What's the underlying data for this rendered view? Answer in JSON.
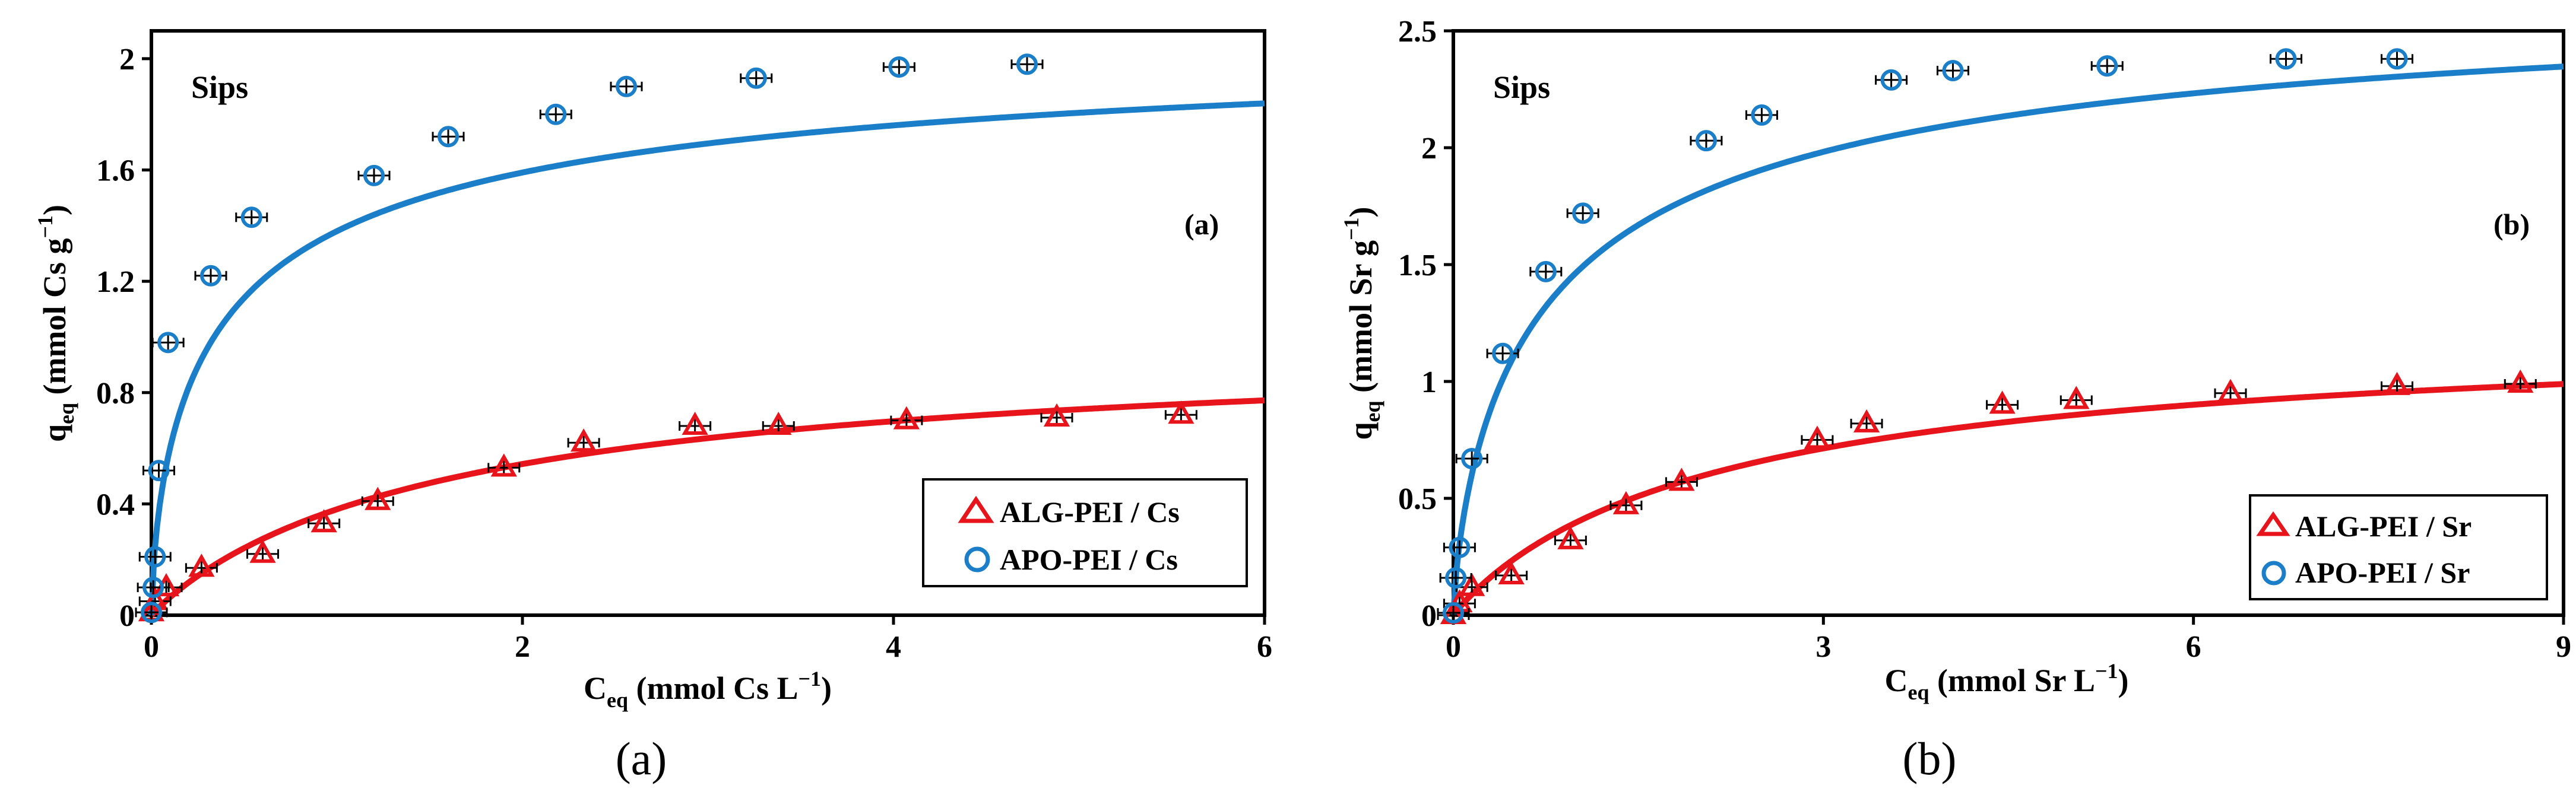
{
  "chart_data": [
    {
      "type": "scatter",
      "panel_tag": "(a)",
      "model_label": "Sips",
      "caption": "(a)",
      "ylabel_main": "q",
      "ylabel_sub": "eq",
      "ylabel_rest": " (mmol Cs g",
      "ylabel_sup": "−1",
      "ylabel_close": ")",
      "xlabel_main": "C",
      "xlabel_sub": "eq",
      "xlabel_rest": " (mmol Cs L",
      "xlabel_sup": "−1",
      "xlabel_close": ")",
      "xlim": [
        0,
        6
      ],
      "ylim": [
        0,
        2.1
      ],
      "xticks": [
        0,
        2,
        4,
        6
      ],
      "xtick_labels": [
        "0",
        "2",
        "4",
        "6"
      ],
      "yticks": [
        0,
        0.4,
        0.8,
        1.2,
        1.6,
        2
      ],
      "ytick_labels": [
        "0",
        "0.4",
        "0.8",
        "1.2",
        "1.6",
        "2"
      ],
      "legend_position": "bottom-right",
      "series": [
        {
          "name": "ALG-PEI / Cs",
          "marker": "triangle",
          "color": "#e8141b",
          "points": [
            [
              0,
              0.01
            ],
            [
              0.02,
              0.05
            ],
            [
              0.08,
              0.1
            ],
            [
              0.27,
              0.17
            ],
            [
              0.6,
              0.22
            ],
            [
              0.93,
              0.33
            ],
            [
              1.22,
              0.41
            ],
            [
              1.9,
              0.53
            ],
            [
              2.33,
              0.62
            ],
            [
              2.93,
              0.68
            ],
            [
              3.38,
              0.68
            ],
            [
              4.07,
              0.7
            ],
            [
              4.88,
              0.71
            ],
            [
              5.55,
              0.72
            ]
          ],
          "fit": {
            "model": "Sips",
            "qm": 1.0,
            "b": 0.6,
            "n": 1.05
          }
        },
        {
          "name": "APO-PEI / Cs",
          "marker": "circle",
          "color": "#1a7ec8",
          "points": [
            [
              0,
              0.01
            ],
            [
              0.01,
              0.1
            ],
            [
              0.02,
              0.21
            ],
            [
              0.04,
              0.52
            ],
            [
              0.09,
              0.98
            ],
            [
              0.32,
              1.22
            ],
            [
              0.54,
              1.43
            ],
            [
              1.2,
              1.58
            ],
            [
              1.6,
              1.72
            ],
            [
              2.18,
              1.8
            ],
            [
              2.56,
              1.9
            ],
            [
              3.26,
              1.93
            ],
            [
              4.03,
              1.97
            ],
            [
              4.72,
              1.98
            ]
          ],
          "fit": {
            "model": "Sips",
            "qm": 2.15,
            "b": 2.4,
            "n": 1.5
          }
        }
      ]
    },
    {
      "type": "scatter",
      "panel_tag": "(b)",
      "model_label": "Sips",
      "caption": "(b)",
      "ylabel_main": "q",
      "ylabel_sub": "eq",
      "ylabel_rest": " (mmol Sr g",
      "ylabel_sup": "−1",
      "ylabel_close": ")",
      "xlabel_main": "C",
      "xlabel_sub": "eq",
      "xlabel_rest": " (mmol Sr L",
      "xlabel_sup": "−1",
      "xlabel_close": ")",
      "xlim": [
        0,
        9
      ],
      "ylim": [
        0,
        2.5
      ],
      "xticks": [
        0,
        3,
        6,
        9
      ],
      "xtick_labels": [
        "0",
        "3",
        "6",
        "9"
      ],
      "yticks": [
        0,
        0.5,
        1,
        1.5,
        2,
        2.5
      ],
      "ytick_labels": [
        "0",
        "0.5",
        "1",
        "1.5",
        "2",
        "2.5"
      ],
      "legend_position": "bottom-right",
      "series": [
        {
          "name": "ALG-PEI / Sr",
          "marker": "triangle",
          "color": "#e8141b",
          "points": [
            [
              0,
              0.0
            ],
            [
              0.05,
              0.05
            ],
            [
              0.15,
              0.12
            ],
            [
              0.47,
              0.17
            ],
            [
              0.95,
              0.32
            ],
            [
              1.4,
              0.47
            ],
            [
              1.85,
              0.57
            ],
            [
              2.95,
              0.75
            ],
            [
              3.35,
              0.82
            ],
            [
              4.45,
              0.9
            ],
            [
              5.05,
              0.92
            ],
            [
              6.3,
              0.95
            ],
            [
              7.65,
              0.98
            ],
            [
              8.65,
              0.99
            ]
          ],
          "fit": {
            "model": "Sips",
            "qm": 1.25,
            "b": 0.45,
            "n": 1.05
          }
        },
        {
          "name": "APO-PEI / Sr",
          "marker": "circle",
          "color": "#1a7ec8",
          "points": [
            [
              0,
              0.01
            ],
            [
              0.02,
              0.16
            ],
            [
              0.05,
              0.29
            ],
            [
              0.15,
              0.67
            ],
            [
              0.4,
              1.12
            ],
            [
              0.75,
              1.47
            ],
            [
              1.05,
              1.72
            ],
            [
              2.05,
              2.03
            ],
            [
              2.5,
              2.14
            ],
            [
              3.55,
              2.29
            ],
            [
              4.05,
              2.33
            ],
            [
              5.3,
              2.35
            ],
            [
              6.75,
              2.38
            ],
            [
              7.65,
              2.38
            ]
          ],
          "fit": {
            "model": "Sips",
            "qm": 2.75,
            "b": 1.2,
            "n": 1.35
          }
        }
      ]
    }
  ]
}
